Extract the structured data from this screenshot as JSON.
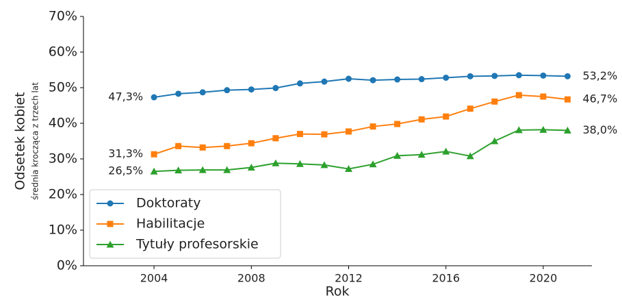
{
  "chart_data": {
    "type": "line",
    "xlabel": "Rok",
    "ylabel": "Odsetek kobiet",
    "ylabel_sub": "średnia krocząca z trzech lat",
    "x": [
      2004,
      2005,
      2006,
      2007,
      2008,
      2009,
      2010,
      2011,
      2012,
      2013,
      2014,
      2015,
      2016,
      2017,
      2018,
      2019,
      2020,
      2021
    ],
    "xlim": [
      2001.1,
      2022
    ],
    "xticks": [
      2004,
      2008,
      2012,
      2016,
      2020
    ],
    "ylim": [
      0,
      70
    ],
    "yticks": [
      {
        "value": 0,
        "label": "0%"
      },
      {
        "value": 10,
        "label": "10%"
      },
      {
        "value": 20,
        "label": "20%"
      },
      {
        "value": 30,
        "label": "30%"
      },
      {
        "value": 40,
        "label": "40%"
      },
      {
        "value": 50,
        "label": "50%"
      },
      {
        "value": 60,
        "label": "60%"
      },
      {
        "value": 70,
        "label": "70%"
      }
    ],
    "legend": "lower left",
    "series": [
      {
        "name": "Doktoraty",
        "color": "#1f77b4",
        "marker": "circle",
        "values": [
          47.3,
          48.3,
          48.7,
          49.3,
          49.5,
          49.9,
          51.2,
          51.7,
          52.5,
          52.1,
          52.3,
          52.4,
          52.8,
          53.2,
          53.3,
          53.5,
          53.4,
          53.2
        ],
        "value_labels": [
          "47,3%",
          null,
          null,
          null,
          null,
          null,
          null,
          null,
          null,
          null,
          null,
          null,
          null,
          null,
          null,
          null,
          null,
          "53,2%"
        ]
      },
      {
        "name": "Habilitacje",
        "color": "#ff7f0e",
        "marker": "square",
        "values": [
          31.3,
          33.6,
          33.2,
          33.6,
          34.4,
          35.8,
          37.0,
          36.9,
          37.7,
          39.1,
          39.8,
          41.1,
          41.9,
          44.1,
          46.1,
          47.9,
          47.5,
          46.7
        ],
        "value_labels": [
          "31,3%",
          null,
          null,
          null,
          null,
          null,
          null,
          null,
          null,
          null,
          null,
          null,
          null,
          null,
          null,
          null,
          null,
          "46,7%"
        ]
      },
      {
        "name": "Tytuły profesorskie",
        "color": "#2ca02c",
        "marker": "triangle",
        "values": [
          26.5,
          26.8,
          26.9,
          26.9,
          27.6,
          28.8,
          28.6,
          28.3,
          27.2,
          28.5,
          30.9,
          31.2,
          32.1,
          30.8,
          35.0,
          38.1,
          38.2,
          38.0
        ],
        "value_labels": [
          "26,5%",
          null,
          null,
          null,
          null,
          null,
          null,
          null,
          null,
          null,
          null,
          null,
          null,
          null,
          null,
          null,
          null,
          "38,0%"
        ]
      }
    ]
  }
}
